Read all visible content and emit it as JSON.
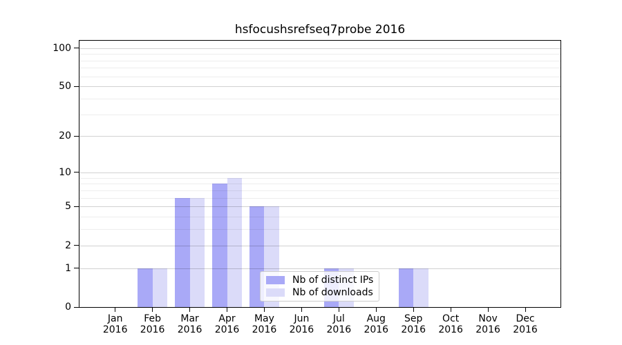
{
  "chart_data": {
    "type": "bar",
    "title": "hsfocushsrefseq7probe 2016",
    "categories": [
      "Jan 2016",
      "Feb 2016",
      "Mar 2016",
      "Apr 2016",
      "May 2016",
      "Jun 2016",
      "Jul 2016",
      "Aug 2016",
      "Sep 2016",
      "Oct 2016",
      "Nov 2016",
      "Dec 2016"
    ],
    "series": [
      {
        "name": "Nb of distinct IPs",
        "color": "#a9a9f7",
        "values": [
          0,
          1,
          6,
          8,
          5,
          0,
          1,
          0,
          1,
          0,
          0,
          0
        ]
      },
      {
        "name": "Nb of downloads",
        "color": "#dbdbf9",
        "values": [
          0,
          1,
          6,
          9,
          5,
          0,
          1,
          0,
          1,
          0,
          0,
          0
        ]
      }
    ],
    "y_axis": {
      "scale": "log10(value+1)",
      "ticks": [
        0,
        1,
        2,
        5,
        10,
        20,
        50,
        100
      ],
      "tick_labels": [
        "0",
        "1",
        "2",
        "5",
        "10",
        "20",
        "50",
        "100"
      ],
      "range": [
        0,
        114
      ]
    },
    "x_axis": {
      "year_line": "2016"
    },
    "grid": {
      "horizontal": true,
      "vertical": false,
      "minor": true
    },
    "legend": {
      "location": "lower center"
    }
  }
}
